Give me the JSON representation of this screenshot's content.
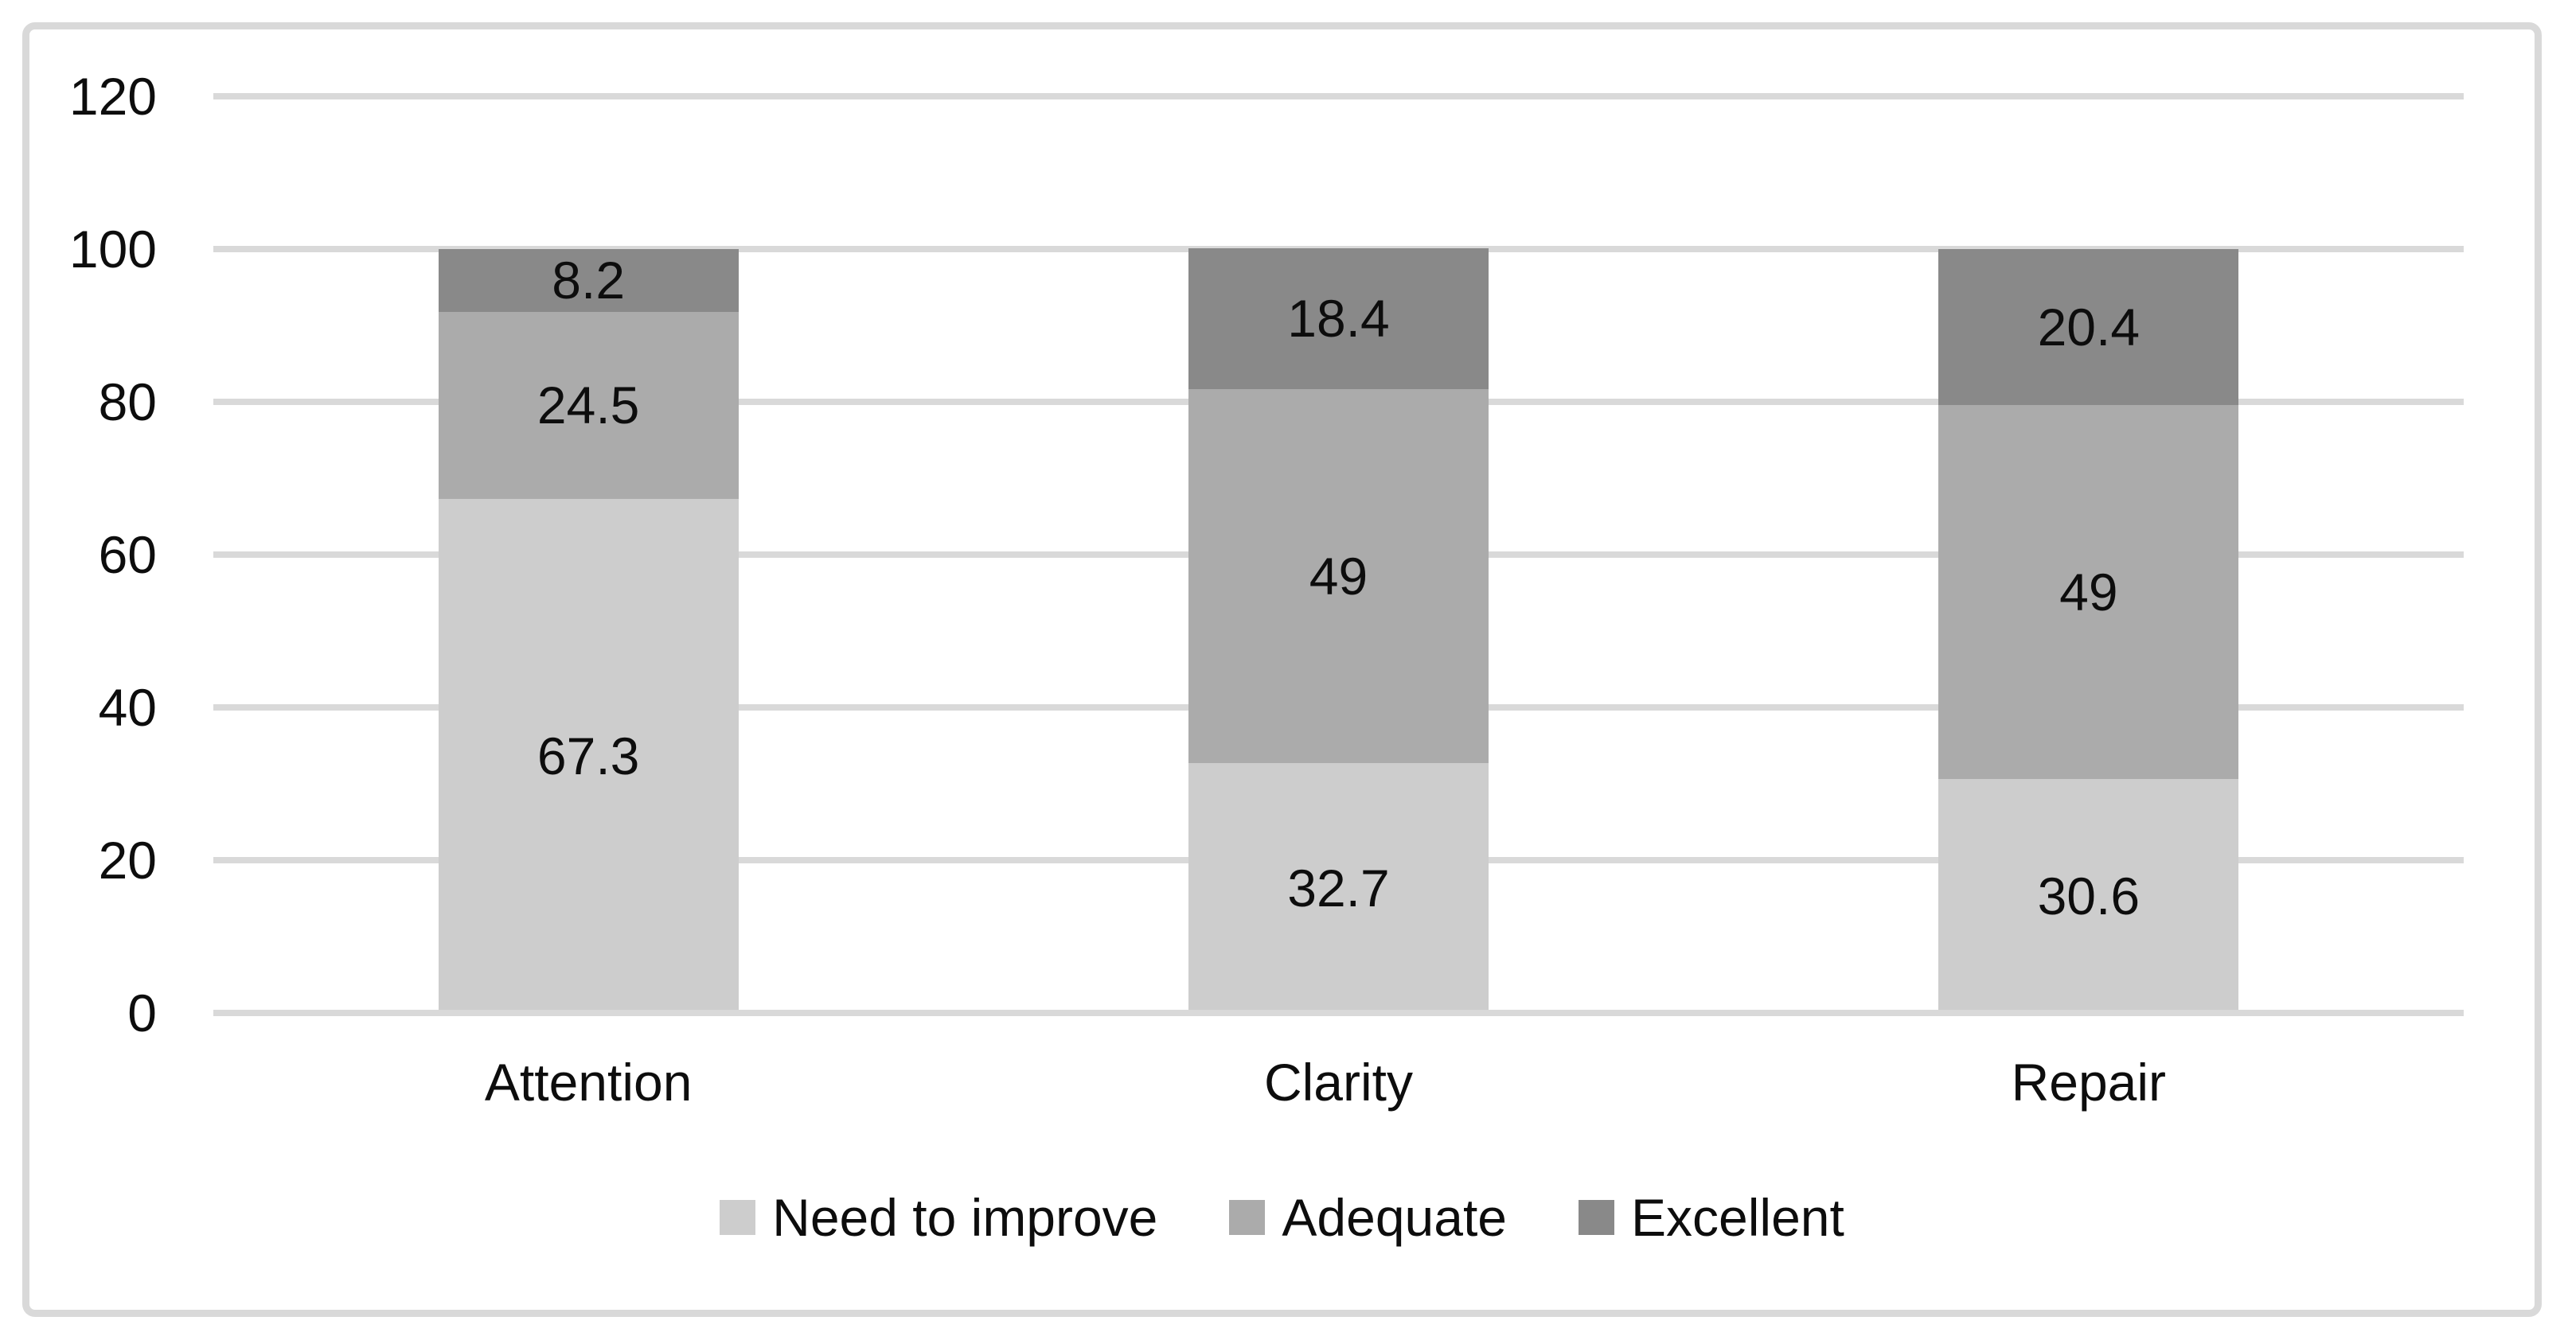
{
  "colors": {
    "background": "#ffffff",
    "frame_border": "#d9d9d9",
    "gridline": "#d9d9d9",
    "axis_line": "#d9d9d9",
    "text": "#0d0d0d",
    "series_light": "#cdcdcd",
    "series_medium": "#ababab",
    "series_dark": "#898989"
  },
  "chart_data": {
    "type": "bar",
    "subtype": "stacked-column",
    "title": "",
    "xlabel": "",
    "ylabel": "",
    "categories": [
      "Attention",
      "Clarity",
      "Repair"
    ],
    "series": [
      {
        "name": "Need to improve",
        "color": "#cdcdcd",
        "values": [
          67.3,
          32.7,
          30.6
        ],
        "labels": [
          "67.3",
          "32.7",
          "30.6"
        ]
      },
      {
        "name": "Adequate",
        "color": "#ababab",
        "values": [
          24.5,
          49,
          49
        ],
        "labels": [
          "24.5",
          "49",
          "49"
        ]
      },
      {
        "name": "Excellent",
        "color": "#898989",
        "values": [
          8.2,
          18.4,
          20.4
        ],
        "labels": [
          "8.2",
          "18.4",
          "20.4"
        ]
      }
    ],
    "yticks": [
      0,
      20,
      40,
      60,
      80,
      100,
      120
    ],
    "ytick_labels": [
      "0",
      "20",
      "40",
      "60",
      "80",
      "100",
      "120"
    ],
    "ylim": [
      0,
      120
    ],
    "grid": true,
    "legend_position": "bottom",
    "legend_entries": [
      "Need to improve",
      "Adequate",
      "Excellent"
    ]
  }
}
